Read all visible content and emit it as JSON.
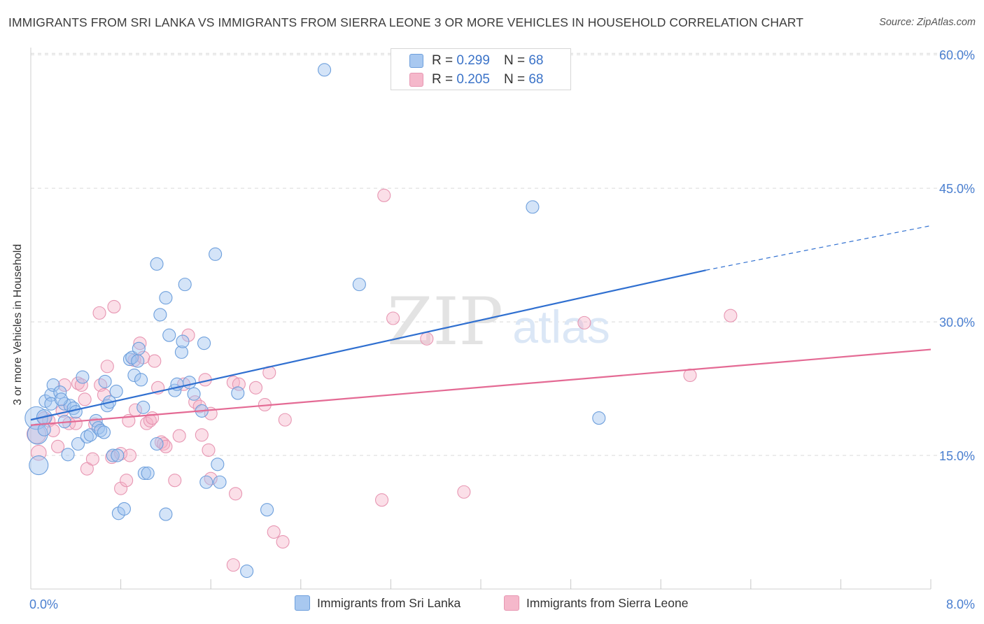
{
  "title": "IMMIGRANTS FROM SRI LANKA VS IMMIGRANTS FROM SIERRA LEONE 3 OR MORE VEHICLES IN HOUSEHOLD CORRELATION CHART",
  "source": "Source: ZipAtlas.com",
  "watermark": {
    "zip": "ZIP",
    "atlas": "atlas"
  },
  "legend_top": {
    "r_label": "R =",
    "n_label": "N =",
    "rows": [
      {
        "r": "0.299",
        "n": "68",
        "color": "#a8c8f0"
      },
      {
        "r": "0.205",
        "n": "68",
        "color": "#f5b8cb"
      }
    ]
  },
  "legend_bottom": [
    {
      "label": "Immigrants from Sri Lanka",
      "color": "#a8c8f0"
    },
    {
      "label": "Immigrants from Sierra Leone",
      "color": "#f5b8cb"
    }
  ],
  "colors": {
    "blue_fill": "rgba(160,195,240,0.45)",
    "blue_stroke": "#6d9fdc",
    "blue_line": "#2f6fd0",
    "pink_fill": "rgba(245,175,198,0.40)",
    "pink_stroke": "#e796b2",
    "pink_line": "#e46a94",
    "tick_label": "#4a7fd0",
    "grid": "#d9d9d9"
  },
  "chart_data": {
    "type": "scatter",
    "xlabel": "",
    "ylabel": "3 or more Vehicles in Household",
    "xlim": [
      0,
      8
    ],
    "ylim": [
      0,
      60
    ],
    "y_ticks": [
      15,
      30,
      45,
      60
    ],
    "y_tick_labels": [
      "15.0%",
      "30.0%",
      "45.0%",
      "60.0%"
    ],
    "x_tick_labels": {
      "left": "0.0%",
      "right": "8.0%"
    },
    "x_minor_ticks": [
      0.8,
      1.6,
      2.4,
      3.2,
      4.0,
      4.8,
      5.6,
      6.4,
      7.2,
      8.0
    ],
    "grid": true,
    "series": [
      {
        "name": "Immigrants from Sri Lanka",
        "stats": {
          "R": 0.299,
          "N": 68
        },
        "trend": {
          "x0": 0,
          "y0": 19.0,
          "x1": 6.0,
          "y1": 35.8,
          "dash_x1": 8.0,
          "dash_y1": 40.8
        },
        "points": [
          [
            0.05,
            19.2,
            1.8
          ],
          [
            0.06,
            17.4,
            1.6
          ],
          [
            0.07,
            13.9,
            1.5
          ],
          [
            0.12,
            19.3,
            1.2
          ],
          [
            0.13,
            21.1,
            1.0
          ],
          [
            0.18,
            21.8,
            1.0
          ],
          [
            0.18,
            20.8,
            1.0
          ],
          [
            0.2,
            22.9,
            1.0
          ],
          [
            0.26,
            22.1,
            1.0
          ],
          [
            0.3,
            20.8,
            1.0
          ],
          [
            0.33,
            15.1,
            1.0
          ],
          [
            0.35,
            20.6,
            1.0
          ],
          [
            0.38,
            20.3,
            1.0
          ],
          [
            0.4,
            19.9,
            1.0
          ],
          [
            0.42,
            16.3,
            1.0
          ],
          [
            0.46,
            23.8,
            1.0
          ],
          [
            0.5,
            17.1,
            1.0
          ],
          [
            0.53,
            17.3,
            1.0
          ],
          [
            0.58,
            18.9,
            1.0
          ],
          [
            0.6,
            18.1,
            1.0
          ],
          [
            0.62,
            17.8,
            1.0
          ],
          [
            0.65,
            17.6,
            1.0
          ],
          [
            0.66,
            23.3,
            1.0
          ],
          [
            0.68,
            20.6,
            1.0
          ],
          [
            0.7,
            21.0,
            1.0
          ],
          [
            0.73,
            15.0,
            1.0
          ],
          [
            0.77,
            15.0,
            1.0
          ],
          [
            0.76,
            22.2,
            1.0
          ],
          [
            0.78,
            8.5,
            1.0
          ],
          [
            0.83,
            9.0,
            1.0
          ],
          [
            0.88,
            25.8,
            1.0
          ],
          [
            0.9,
            26.0,
            1.0
          ],
          [
            0.92,
            24.0,
            1.0
          ],
          [
            0.95,
            25.6,
            1.0
          ],
          [
            0.96,
            27.0,
            1.0
          ],
          [
            0.98,
            23.5,
            1.0
          ],
          [
            1.01,
            13.0,
            1.0
          ],
          [
            1.04,
            13.0,
            1.0
          ],
          [
            1.12,
            36.5,
            1.0
          ],
          [
            1.12,
            16.3,
            1.0
          ],
          [
            1.15,
            30.8,
            1.0
          ],
          [
            1.2,
            32.7,
            1.0
          ],
          [
            1.2,
            8.4,
            1.0
          ],
          [
            1.23,
            28.5,
            1.0
          ],
          [
            1.28,
            22.3,
            1.0
          ],
          [
            1.3,
            23.0,
            1.0
          ],
          [
            1.34,
            26.6,
            1.0
          ],
          [
            1.35,
            27.8,
            1.0
          ],
          [
            1.37,
            34.2,
            1.0
          ],
          [
            1.41,
            23.2,
            1.0
          ],
          [
            1.45,
            21.9,
            1.0
          ],
          [
            1.52,
            20.0,
            1.0
          ],
          [
            1.54,
            27.6,
            1.0
          ],
          [
            1.56,
            12.0,
            1.0
          ],
          [
            1.64,
            37.6,
            1.0
          ],
          [
            1.66,
            14.0,
            1.0
          ],
          [
            1.68,
            12.0,
            1.0
          ],
          [
            1.84,
            22.0,
            1.0
          ],
          [
            1.92,
            2.0,
            1.0
          ],
          [
            2.1,
            8.9,
            1.0
          ],
          [
            2.61,
            58.3,
            1.0
          ],
          [
            2.92,
            34.2,
            1.0
          ],
          [
            4.46,
            42.9,
            1.0
          ],
          [
            5.05,
            19.2,
            1.0
          ],
          [
            0.27,
            21.3,
            1.0
          ],
          [
            0.12,
            17.9,
            1.0
          ],
          [
            0.3,
            18.8,
            1.0
          ],
          [
            1.0,
            20.4,
            1.0
          ]
        ]
      },
      {
        "name": "Immigrants from Sierra Leone",
        "stats": {
          "R": 0.205,
          "N": 68
        },
        "trend": {
          "x0": 0,
          "y0": 18.4,
          "x1": 8.0,
          "y1": 26.9
        },
        "points": [
          [
            0.05,
            17.4,
            1.5
          ],
          [
            0.07,
            15.3,
            1.2
          ],
          [
            0.12,
            19.2,
            1.0
          ],
          [
            0.16,
            18.9,
            1.0
          ],
          [
            0.2,
            17.8,
            1.0
          ],
          [
            0.24,
            16.0,
            1.0
          ],
          [
            0.28,
            20.0,
            1.0
          ],
          [
            0.3,
            22.9,
            1.0
          ],
          [
            0.34,
            18.6,
            1.0
          ],
          [
            0.4,
            18.6,
            1.0
          ],
          [
            0.42,
            23.1,
            1.0
          ],
          [
            0.45,
            22.9,
            1.0
          ],
          [
            0.48,
            21.3,
            1.0
          ],
          [
            0.5,
            13.5,
            1.0
          ],
          [
            0.55,
            14.6,
            1.0
          ],
          [
            0.57,
            18.5,
            1.0
          ],
          [
            0.61,
            31.0,
            1.0
          ],
          [
            0.62,
            22.9,
            1.0
          ],
          [
            0.65,
            21.8,
            1.0
          ],
          [
            0.68,
            25.0,
            1.0
          ],
          [
            0.72,
            14.8,
            1.0
          ],
          [
            0.74,
            31.7,
            1.0
          ],
          [
            0.8,
            15.2,
            1.0
          ],
          [
            0.8,
            11.3,
            1.0
          ],
          [
            0.85,
            12.2,
            1.0
          ],
          [
            0.87,
            18.9,
            1.0
          ],
          [
            0.88,
            15.0,
            1.0
          ],
          [
            0.92,
            25.7,
            1.0
          ],
          [
            0.93,
            20.1,
            1.0
          ],
          [
            0.97,
            27.6,
            1.0
          ],
          [
            1.0,
            26.0,
            1.0
          ],
          [
            1.03,
            18.6,
            1.0
          ],
          [
            1.06,
            18.9,
            1.0
          ],
          [
            1.08,
            19.2,
            1.0
          ],
          [
            1.1,
            25.6,
            1.0
          ],
          [
            1.13,
            22.6,
            1.0
          ],
          [
            1.16,
            16.5,
            1.0
          ],
          [
            1.18,
            16.3,
            1.0
          ],
          [
            1.2,
            16.0,
            1.0
          ],
          [
            1.28,
            12.2,
            1.0
          ],
          [
            1.32,
            17.2,
            1.0
          ],
          [
            1.36,
            23.0,
            1.0
          ],
          [
            1.4,
            28.5,
            1.0
          ],
          [
            1.46,
            21.0,
            1.0
          ],
          [
            1.5,
            20.5,
            1.0
          ],
          [
            1.52,
            17.3,
            1.0
          ],
          [
            1.55,
            23.5,
            1.0
          ],
          [
            1.58,
            15.6,
            1.0
          ],
          [
            1.6,
            19.7,
            1.0
          ],
          [
            1.6,
            12.4,
            1.0
          ],
          [
            1.8,
            23.2,
            1.0
          ],
          [
            1.8,
            2.7,
            1.0
          ],
          [
            1.82,
            10.7,
            1.0
          ],
          [
            1.85,
            23.0,
            1.0
          ],
          [
            2.0,
            22.6,
            1.0
          ],
          [
            2.08,
            20.7,
            1.0
          ],
          [
            2.12,
            24.3,
            1.0
          ],
          [
            2.16,
            6.4,
            1.0
          ],
          [
            2.24,
            5.3,
            1.0
          ],
          [
            2.26,
            19.0,
            1.0
          ],
          [
            3.12,
            10.0,
            1.0
          ],
          [
            3.14,
            44.2,
            1.0
          ],
          [
            3.22,
            30.4,
            1.0
          ],
          [
            3.52,
            28.1,
            1.0
          ],
          [
            3.85,
            10.9,
            1.0
          ],
          [
            4.92,
            29.9,
            1.0
          ],
          [
            5.86,
            24.0,
            1.0
          ],
          [
            6.22,
            30.7,
            1.0
          ]
        ]
      }
    ]
  }
}
